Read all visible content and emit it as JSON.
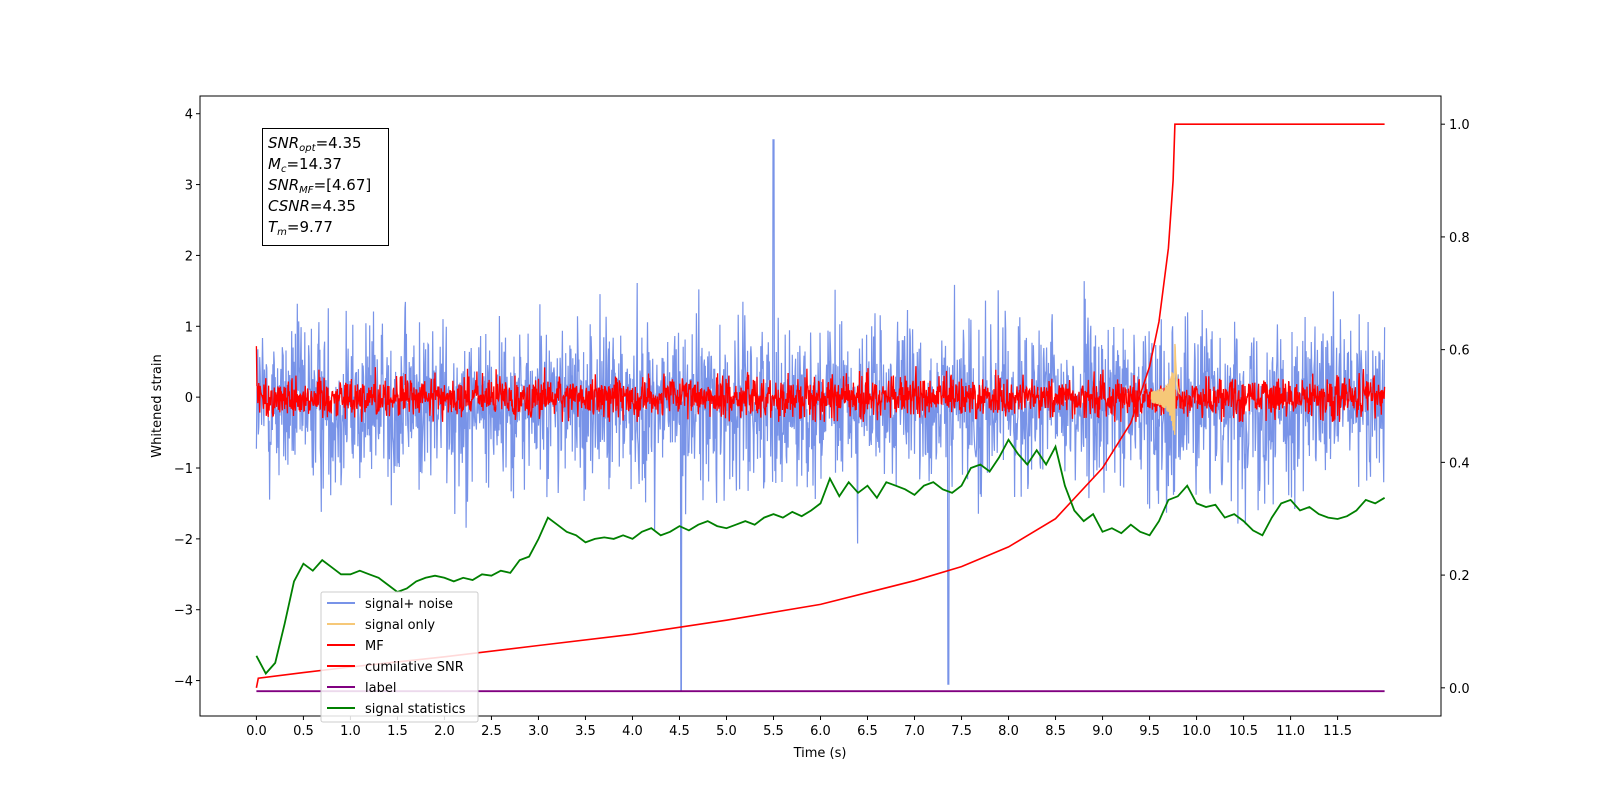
{
  "chart_data": {
    "type": "line",
    "xlabel": "Time (s)",
    "ylabel": "Whitened strain",
    "xlim": [
      -0.6,
      12.6
    ],
    "ylim": [
      -4.5,
      4.25
    ],
    "y2lim": [
      -0.05,
      1.05
    ],
    "x_ticks": [
      "0.0",
      "0.5",
      "1.0",
      "1.5",
      "2.0",
      "2.5",
      "3.0",
      "3.5",
      "4.0",
      "4.5",
      "5.0",
      "5.5",
      "6.0",
      "6.5",
      "7.0",
      "7.5",
      "8.0",
      "8.5",
      "9.0",
      "9.5",
      "10.0",
      "10.5",
      "11.0",
      "11.5"
    ],
    "y_ticks": [
      "4",
      "3",
      "2",
      "1",
      "0",
      "−1",
      "−2",
      "−3",
      "−4"
    ],
    "y2_ticks": [
      "1.0",
      "0.8",
      "0.6",
      "0.4",
      "0.2",
      "0.0"
    ],
    "series": [
      {
        "name": "signal+ noise",
        "color": "#7893e8",
        "kind": "noise",
        "center": -0.1,
        "amplitude": 1.1,
        "spike_peaks": [
          [
            4.52,
            -4.15
          ],
          [
            7.36,
            -4.05
          ],
          [
            5.5,
            3.63
          ]
        ]
      },
      {
        "name": "signal only",
        "color": "#f6c878",
        "kind": "chirp",
        "merger_time": 9.77,
        "peak": 0.85
      },
      {
        "name": "MF",
        "color": "#ff0000",
        "kind": "noise",
        "center": 0.0,
        "amplitude": 0.3
      },
      {
        "name": "cumilative SNR",
        "color": "#ff0000",
        "kind": "curve",
        "axis": "right",
        "x": [
          0.0,
          0.02,
          0.5,
          1.0,
          2.0,
          3.0,
          4.0,
          5.0,
          6.0,
          7.0,
          7.5,
          8.0,
          8.5,
          9.0,
          9.3,
          9.5,
          9.6,
          9.7,
          9.75,
          9.77,
          9.78,
          12.0
        ],
        "y": [
          0.0,
          0.017,
          0.027,
          0.037,
          0.055,
          0.075,
          0.095,
          0.12,
          0.148,
          0.19,
          0.215,
          0.25,
          0.3,
          0.39,
          0.47,
          0.57,
          0.65,
          0.78,
          0.9,
          1.0,
          1.0,
          1.0
        ]
      },
      {
        "name": "label",
        "color": "#800080",
        "kind": "flat",
        "value": -4.15
      },
      {
        "name": "signal statistics",
        "color": "#008000",
        "kind": "curve",
        "axis": "left",
        "x": [
          0.0,
          0.1,
          0.2,
          0.3,
          0.4,
          0.5,
          0.6,
          0.7,
          0.8,
          0.9,
          1.0,
          1.1,
          1.2,
          1.3,
          1.4,
          1.5,
          1.6,
          1.7,
          1.8,
          1.9,
          2.0,
          2.1,
          2.2,
          2.3,
          2.4,
          2.5,
          2.6,
          2.7,
          2.8,
          2.9,
          3.0,
          3.1,
          3.2,
          3.3,
          3.4,
          3.5,
          3.6,
          3.7,
          3.8,
          3.9,
          4.0,
          4.1,
          4.2,
          4.3,
          4.4,
          4.5,
          4.6,
          4.7,
          4.8,
          4.9,
          5.0,
          5.1,
          5.2,
          5.3,
          5.4,
          5.5,
          5.6,
          5.7,
          5.8,
          5.9,
          6.0,
          6.1,
          6.2,
          6.3,
          6.4,
          6.5,
          6.6,
          6.7,
          6.8,
          6.9,
          7.0,
          7.1,
          7.2,
          7.3,
          7.4,
          7.5,
          7.6,
          7.7,
          7.8,
          7.9,
          8.0,
          8.1,
          8.2,
          8.3,
          8.4,
          8.5,
          8.6,
          8.7,
          8.8,
          8.9,
          9.0,
          9.1,
          9.2,
          9.3,
          9.4,
          9.5,
          9.6,
          9.7,
          9.8,
          9.9,
          10.0,
          10.1,
          10.2,
          10.3,
          10.4,
          10.5,
          10.6,
          10.7,
          10.8,
          10.9,
          11.0,
          11.1,
          11.2,
          11.3,
          11.4,
          11.5,
          11.6,
          11.7,
          11.8,
          11.9,
          12.0
        ],
        "y": [
          -3.65,
          -3.9,
          -3.75,
          -3.2,
          -2.6,
          -2.35,
          -2.45,
          -2.3,
          -2.4,
          -2.5,
          -2.5,
          -2.45,
          -2.5,
          -2.55,
          -2.65,
          -2.75,
          -2.7,
          -2.6,
          -2.55,
          -2.52,
          -2.55,
          -2.6,
          -2.55,
          -2.58,
          -2.5,
          -2.52,
          -2.45,
          -2.48,
          -2.3,
          -2.25,
          -2.0,
          -1.7,
          -1.8,
          -1.9,
          -1.95,
          -2.05,
          -2.0,
          -1.98,
          -2.0,
          -1.95,
          -2.0,
          -1.9,
          -1.85,
          -1.95,
          -1.9,
          -1.82,
          -1.88,
          -1.8,
          -1.75,
          -1.82,
          -1.85,
          -1.8,
          -1.75,
          -1.8,
          -1.7,
          -1.65,
          -1.7,
          -1.62,
          -1.68,
          -1.6,
          -1.5,
          -1.15,
          -1.4,
          -1.2,
          -1.35,
          -1.25,
          -1.42,
          -1.2,
          -1.25,
          -1.3,
          -1.38,
          -1.25,
          -1.2,
          -1.3,
          -1.35,
          -1.25,
          -1.0,
          -0.95,
          -1.05,
          -0.85,
          -0.6,
          -0.8,
          -0.95,
          -0.75,
          -0.95,
          -0.7,
          -1.25,
          -1.6,
          -1.75,
          -1.65,
          -1.9,
          -1.85,
          -1.92,
          -1.8,
          -1.9,
          -1.95,
          -1.75,
          -1.45,
          -1.4,
          -1.25,
          -1.5,
          -1.55,
          -1.52,
          -1.7,
          -1.65,
          -1.75,
          -1.88,
          -1.95,
          -1.7,
          -1.5,
          -1.45,
          -1.6,
          -1.55,
          -1.65,
          -1.7,
          -1.72,
          -1.68,
          -1.6,
          -1.45,
          -1.5,
          -1.42
        ]
      }
    ],
    "legend": "lower-left",
    "grid": false
  },
  "annotation": {
    "snr_opt_var": "SNR",
    "snr_opt_sub": "opt",
    "snr_opt_val": "=4.35",
    "mc_var": "M",
    "mc_sub": "c",
    "mc_val": "=14.37",
    "snr_mf_var": "SNR",
    "snr_mf_sub": "MF",
    "snr_mf_val": "=[4.67]",
    "csnr_var": "CSNR",
    "csnr_val": "=4.35",
    "tm_var": "T",
    "tm_sub": "m",
    "tm_val": "=9.77"
  }
}
